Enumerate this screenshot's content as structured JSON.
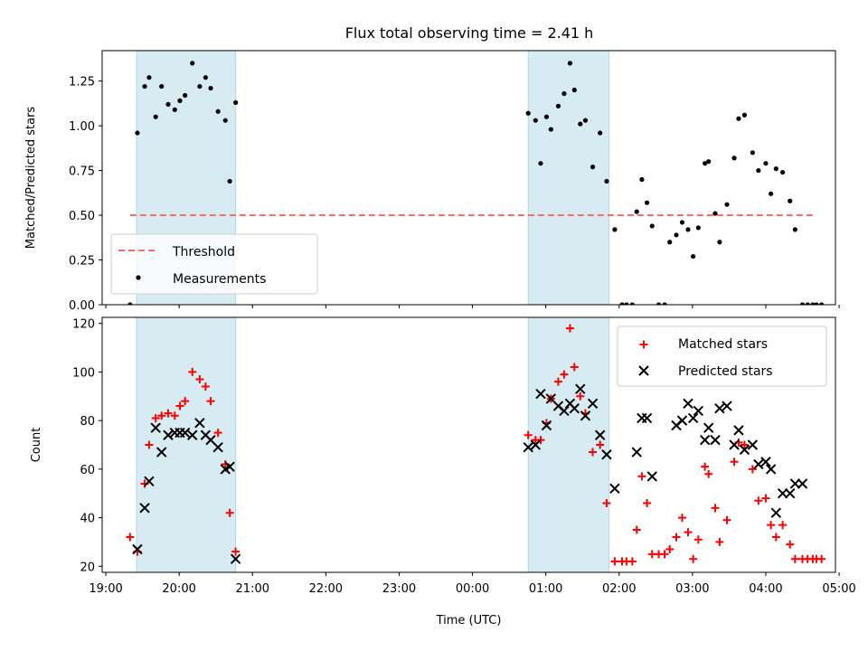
{
  "title": "Flux total observing time = 2.41 h",
  "colors": {
    "shade": "#add8e6",
    "threshold": "#ff6b6b",
    "measurement": "#000000",
    "matched": "#ff0000",
    "predicted": "#000000"
  },
  "chart_data": [
    {
      "type": "scatter",
      "ylabel": "Matched/Predicted stars",
      "xlim": [
        -0.05,
        9.95
      ],
      "ylim": [
        0,
        1.42
      ],
      "yticks": [
        0.0,
        0.25,
        0.5,
        0.75,
        1.0,
        1.25
      ],
      "ytick_labels": [
        "0.00",
        "0.25",
        "0.50",
        "0.75",
        "1.00",
        "1.25"
      ],
      "shaded_spans": [
        [
          0.42,
          1.77
        ],
        [
          5.76,
          6.86
        ]
      ],
      "threshold": {
        "name": "Threshold",
        "y": 0.5,
        "x_range": [
          0.33,
          9.69
        ]
      },
      "legend": {
        "location": "lower-left",
        "entries": [
          "Threshold",
          "Measurements"
        ]
      },
      "series": [
        {
          "name": "Measurements",
          "x": [
            0.33,
            0.43,
            0.53,
            0.59,
            0.68,
            0.76,
            0.85,
            0.94,
            1.01,
            1.08,
            1.18,
            1.28,
            1.36,
            1.43,
            1.53,
            1.63,
            1.69,
            1.77,
            5.76,
            5.86,
            5.93,
            6.01,
            6.07,
            6.17,
            6.25,
            6.33,
            6.39,
            6.47,
            6.54,
            6.64,
            6.74,
            6.83,
            6.94,
            7.04,
            7.1,
            7.18,
            7.24,
            7.31,
            7.38,
            7.45,
            7.54,
            7.62,
            7.69,
            7.78,
            7.86,
            7.94,
            8.01,
            8.08,
            8.17,
            8.22,
            8.31,
            8.37,
            8.47,
            8.57,
            8.63,
            8.71,
            8.82,
            8.9,
            9.0,
            9.07,
            9.14,
            9.23,
            9.33,
            9.4,
            9.5,
            9.57,
            9.64,
            9.69,
            9.76
          ],
          "y": [
            0.0,
            0.96,
            1.22,
            1.27,
            1.05,
            1.22,
            1.12,
            1.09,
            1.14,
            1.17,
            1.35,
            1.22,
            1.27,
            1.21,
            1.08,
            1.03,
            0.69,
            1.13,
            1.07,
            1.03,
            0.79,
            1.05,
            0.98,
            1.11,
            1.18,
            1.35,
            1.2,
            1.01,
            1.03,
            0.77,
            0.96,
            0.69,
            0.42,
            0.0,
            0.0,
            0.0,
            0.52,
            0.7,
            0.57,
            0.44,
            0.0,
            0.0,
            0.35,
            0.39,
            0.46,
            0.42,
            0.27,
            0.43,
            0.79,
            0.8,
            0.51,
            0.35,
            0.56,
            0.82,
            1.04,
            1.06,
            0.85,
            0.75,
            0.79,
            0.62,
            0.76,
            0.74,
            0.58,
            0.42,
            0.0,
            0.0,
            0.0,
            0.0,
            0.0
          ]
        }
      ]
    },
    {
      "type": "scatter",
      "ylabel": "Count",
      "xlabel": "Time (UTC)",
      "xlim": [
        -0.05,
        9.95
      ],
      "ylim": [
        17.5,
        122.5
      ],
      "yticks": [
        20,
        40,
        60,
        80,
        100,
        120
      ],
      "xticks": [
        0,
        1,
        2,
        3,
        4,
        5,
        6,
        7,
        8,
        9,
        10
      ],
      "xtick_labels": [
        "19:00",
        "20:00",
        "21:00",
        "22:00",
        "23:00",
        "00:00",
        "01:00",
        "02:00",
        "03:00",
        "04:00",
        "05:00"
      ],
      "shaded_spans": [
        [
          0.42,
          1.77
        ],
        [
          5.76,
          6.86
        ]
      ],
      "legend": {
        "location": "top-right",
        "entries": [
          "Matched stars",
          "Predicted stars"
        ]
      },
      "series": [
        {
          "name": "Matched stars",
          "marker": "plus",
          "x": [
            0.33,
            0.43,
            0.53,
            0.59,
            0.68,
            0.76,
            0.85,
            0.94,
            1.01,
            1.08,
            1.18,
            1.28,
            1.36,
            1.43,
            1.53,
            1.63,
            1.69,
            1.77,
            5.76,
            5.86,
            5.93,
            6.01,
            6.07,
            6.17,
            6.25,
            6.33,
            6.39,
            6.47,
            6.54,
            6.64,
            6.74,
            6.83,
            6.94,
            7.04,
            7.1,
            7.18,
            7.24,
            7.31,
            7.38,
            7.45,
            7.54,
            7.62,
            7.69,
            7.78,
            7.86,
            7.94,
            8.01,
            8.08,
            8.17,
            8.22,
            8.31,
            8.37,
            8.47,
            8.57,
            8.63,
            8.71,
            8.82,
            8.9,
            9.0,
            9.07,
            9.14,
            9.23,
            9.33,
            9.4,
            9.5,
            9.57,
            9.64,
            9.69,
            9.76
          ],
          "y": [
            32,
            26,
            54,
            70,
            81,
            82,
            83,
            82,
            86,
            88,
            100,
            97,
            94,
            88,
            75,
            62,
            42,
            26,
            74,
            72,
            72,
            79,
            89,
            96,
            99,
            118,
            102,
            90,
            83,
            67,
            70,
            46,
            22,
            22,
            22,
            22,
            35,
            57,
            46,
            25,
            25,
            25,
            27,
            32,
            40,
            34,
            23,
            31,
            61,
            58,
            44,
            30,
            39,
            63,
            71,
            70,
            60,
            47,
            48,
            37,
            32,
            37,
            29,
            23,
            23,
            23,
            23,
            23,
            23
          ]
        },
        {
          "name": "Predicted stars",
          "marker": "x",
          "x": [
            0.43,
            0.53,
            0.59,
            0.68,
            0.76,
            0.85,
            0.94,
            1.01,
            1.08,
            1.18,
            1.28,
            1.36,
            1.43,
            1.53,
            1.63,
            1.69,
            1.77,
            5.76,
            5.86,
            5.93,
            6.01,
            6.07,
            6.17,
            6.25,
            6.33,
            6.39,
            6.47,
            6.54,
            6.64,
            6.74,
            6.83,
            6.94,
            7.24,
            7.31,
            7.38,
            7.45,
            7.78,
            7.86,
            7.94,
            8.01,
            8.08,
            8.17,
            8.22,
            8.31,
            8.37,
            8.47,
            8.57,
            8.63,
            8.71,
            8.82,
            8.9,
            9.0,
            9.07,
            9.14,
            9.23,
            9.33,
            9.4,
            9.5
          ],
          "y": [
            27,
            44,
            55,
            77,
            67,
            74,
            75,
            75,
            75,
            74,
            79,
            74,
            72,
            69,
            60,
            61,
            23,
            69,
            70,
            91,
            78,
            89,
            86,
            84,
            87,
            85,
            93,
            82,
            87,
            74,
            66,
            52,
            67,
            81,
            81,
            57,
            78,
            80,
            87,
            81,
            84,
            72,
            77,
            72,
            85,
            86,
            70,
            76,
            68,
            70,
            62,
            63,
            60,
            42,
            50,
            50,
            54,
            54
          ]
        }
      ]
    }
  ]
}
